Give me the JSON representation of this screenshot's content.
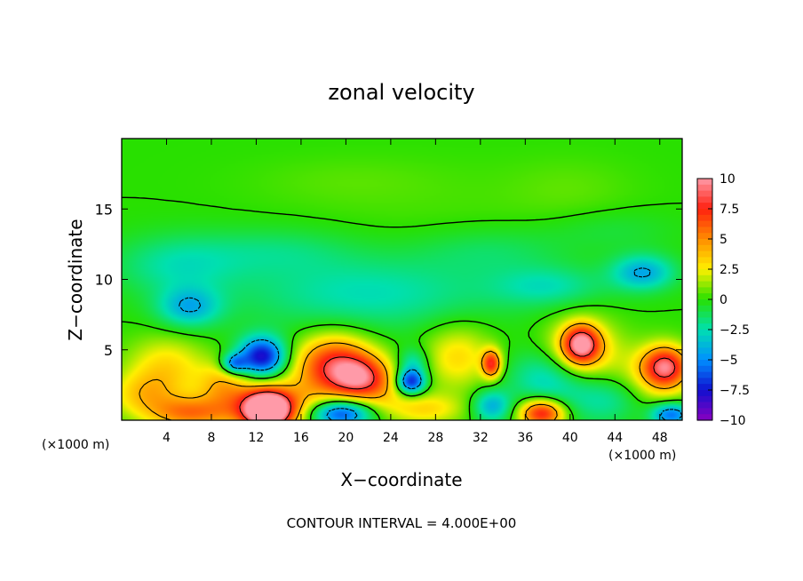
{
  "chart_data": {
    "type": "heatmap",
    "title": "zonal velocity",
    "xlabel": "X−coordinate",
    "ylabel": "Z−coordinate",
    "x_unit_left": "(×1000 m)",
    "x_unit_right": "(×1000 m)",
    "footer": "CONTOUR INTERVAL = 4.000E+00",
    "xlim": [
      0,
      50
    ],
    "ylim": [
      0,
      20
    ],
    "xticks": [
      4,
      8,
      12,
      16,
      20,
      24,
      28,
      32,
      36,
      40,
      44,
      48
    ],
    "xtick_labels": [
      "4",
      "8",
      "12",
      "16",
      "20",
      "24",
      "28",
      "32",
      "36",
      "40",
      "44",
      "48"
    ],
    "yticks": [
      5,
      10,
      15
    ],
    "ytick_labels": [
      "5",
      "10",
      "15"
    ],
    "colorbar": {
      "min": -10,
      "max": 10,
      "ticks": [
        10,
        7.5,
        5,
        2.5,
        0,
        -2.5,
        -5,
        -7.5,
        -10
      ],
      "tick_labels": [
        "10",
        "7.5",
        "5",
        "2.5",
        "0",
        "−2.5",
        "−5",
        "−7.5",
        "−10"
      ],
      "colors": [
        "#ff9aa8",
        "#ff2010",
        "#ff8c00",
        "#fff000",
        "#28e000",
        "#00e0b0",
        "#0090ff",
        "#1010d0",
        "#8800c0"
      ]
    },
    "background_value": 0,
    "features": [
      {
        "x": 13,
        "z": 0.7,
        "sx": 1.4,
        "sz": 0.9,
        "v": 11
      },
      {
        "x": 13,
        "z": 1.0,
        "sx": 3.0,
        "sz": 1.2,
        "v": 6
      },
      {
        "x": 6,
        "z": 0.5,
        "sx": 2.5,
        "sz": 0.8,
        "v": 5
      },
      {
        "x": 2,
        "z": 1.8,
        "sx": 2.2,
        "sz": 1.1,
        "v": 3
      },
      {
        "x": 4,
        "z": 3.8,
        "sx": 2.5,
        "sz": 1.5,
        "v": 3
      },
      {
        "x": 9,
        "z": 2.6,
        "sx": 1.6,
        "sz": 1.1,
        "v": 3
      },
      {
        "x": 19,
        "z": 3.8,
        "sx": 2.4,
        "sz": 1.5,
        "v": 8
      },
      {
        "x": 21,
        "z": 3.0,
        "sx": 1.5,
        "sz": 1.0,
        "v": 5
      },
      {
        "x": 23,
        "z": 2.5,
        "sx": 1.5,
        "sz": 1.3,
        "v": 3
      },
      {
        "x": 27,
        "z": 0.8,
        "sx": 2.5,
        "sz": 0.8,
        "v": 3
      },
      {
        "x": 30,
        "z": 4.5,
        "sx": 2.2,
        "sz": 1.6,
        "v": 3
      },
      {
        "x": 33,
        "z": 4.0,
        "sx": 0.6,
        "sz": 0.7,
        "v": 7
      },
      {
        "x": 37.5,
        "z": 0.5,
        "sx": 1.4,
        "sz": 0.7,
        "v": 8
      },
      {
        "x": 41,
        "z": 5.4,
        "sx": 1.1,
        "sz": 0.9,
        "v": 8
      },
      {
        "x": 41,
        "z": 5.0,
        "sx": 2.2,
        "sz": 1.6,
        "v": 4
      },
      {
        "x": 48.5,
        "z": 3.8,
        "sx": 1.4,
        "sz": 1.0,
        "v": 8
      },
      {
        "x": 47,
        "z": 2.5,
        "sx": 2.5,
        "sz": 1.8,
        "v": 3
      },
      {
        "x": 12.5,
        "z": 4.5,
        "sx": 1.5,
        "sz": 1.0,
        "v": -8
      },
      {
        "x": 10,
        "z": 4.0,
        "sx": 0.8,
        "sz": 0.5,
        "v": -5
      },
      {
        "x": 19.5,
        "z": 0.5,
        "sx": 2.0,
        "sz": 0.7,
        "v": -7
      },
      {
        "x": 25.8,
        "z": 2.7,
        "sx": 0.9,
        "sz": 0.6,
        "v": -7
      },
      {
        "x": 26,
        "z": 4.0,
        "sx": 1.0,
        "sz": 0.8,
        "v": -3
      },
      {
        "x": 33,
        "z": 1.0,
        "sx": 1.2,
        "sz": 0.8,
        "v": -4
      },
      {
        "x": 38,
        "z": 3.0,
        "sx": 2.5,
        "sz": 1.4,
        "v": -3
      },
      {
        "x": 44,
        "z": 1.5,
        "sx": 3.0,
        "sz": 1.3,
        "v": -3
      },
      {
        "x": 49,
        "z": 0.4,
        "sx": 1.3,
        "sz": 0.6,
        "v": -6
      },
      {
        "x": 6,
        "z": 8.0,
        "sx": 2.0,
        "sz": 1.0,
        "v": -3.8
      },
      {
        "x": 46.5,
        "z": 10.5,
        "sx": 2.0,
        "sz": 0.9,
        "v": -4.2
      },
      {
        "x": 38,
        "z": 9.5,
        "sx": 3.5,
        "sz": 1.0,
        "v": -2.3
      },
      {
        "x": 5,
        "z": 11.0,
        "sx": 4.0,
        "sz": 1.5,
        "v": -2.3
      },
      {
        "x": 22,
        "z": 9.0,
        "sx": 8.0,
        "sz": 1.8,
        "v": -2.6
      },
      {
        "x": 14,
        "z": 12.0,
        "sx": 5.0,
        "sz": 1.2,
        "v": -1.5
      },
      {
        "x": 33,
        "z": 12.0,
        "sx": 5.0,
        "sz": 1.2,
        "v": -1.3
      },
      {
        "x": 44,
        "z": 13.5,
        "sx": 4.0,
        "sz": 1.0,
        "v": -0.8
      },
      {
        "x": 20,
        "z": 17.0,
        "sx": 6.0,
        "sz": 1.2,
        "v": 0.4
      },
      {
        "x": 40,
        "z": 16.5,
        "sx": 4.0,
        "sz": 1.5,
        "v": 0.5
      },
      {
        "x": 28,
        "z": 15.0,
        "sx": 10.0,
        "sz": 2.5,
        "v": 0.3
      }
    ]
  }
}
